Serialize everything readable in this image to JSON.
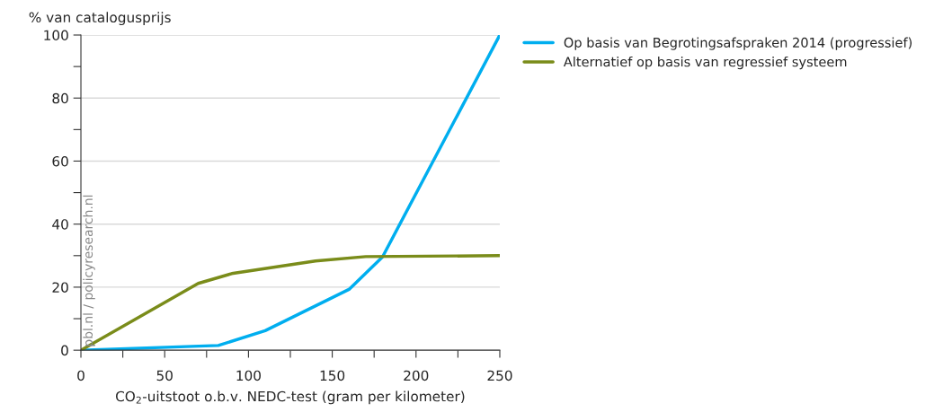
{
  "chart_data": {
    "type": "line",
    "ylabel": "% van catalogusprijs",
    "xlabel": "CO$_{2}$-uitstoot o.b.v. NEDC-test (gram per kilometer)",
    "annotations": [
      "pbl.nl / policyresearch.nl"
    ],
    "series": [
      {
        "name": "Op basis van Begrotingsafspraken 2014 (progressief)",
        "color": "#00aeef",
        "x": [
          0,
          82,
          110,
          160,
          180,
          250
        ],
        "values": [
          0,
          1.5,
          6.2,
          19.3,
          29.6,
          100
        ]
      },
      {
        "name": "Alternatief op basis van regressief systeem",
        "color": "#7a8c1a",
        "x": [
          0,
          70,
          90,
          140,
          170,
          250
        ],
        "values": [
          0,
          21.2,
          24.3,
          28.3,
          29.7,
          30
        ]
      }
    ],
    "xlim": [
      0,
      250
    ],
    "ylim": [
      0,
      100
    ],
    "xticks": [
      0,
      {
        "value": 25,
        "label": null
      },
      50,
      {
        "value": 75,
        "label": null
      },
      100,
      {
        "value": 125,
        "label": null
      },
      150,
      {
        "value": 175,
        "label": null
      },
      200,
      {
        "value": 225,
        "label": null
      },
      250
    ],
    "yticks": [
      0,
      {
        "value": 10,
        "label": null
      },
      20,
      {
        "value": 30,
        "label": null
      },
      40,
      {
        "value": 50,
        "label": null
      },
      60,
      {
        "value": 70,
        "label": null
      },
      80,
      {
        "value": 90,
        "label": null
      },
      100
    ],
    "grid": "y",
    "legend": "top right",
    "marker": "none",
    "line_style": "solid"
  }
}
